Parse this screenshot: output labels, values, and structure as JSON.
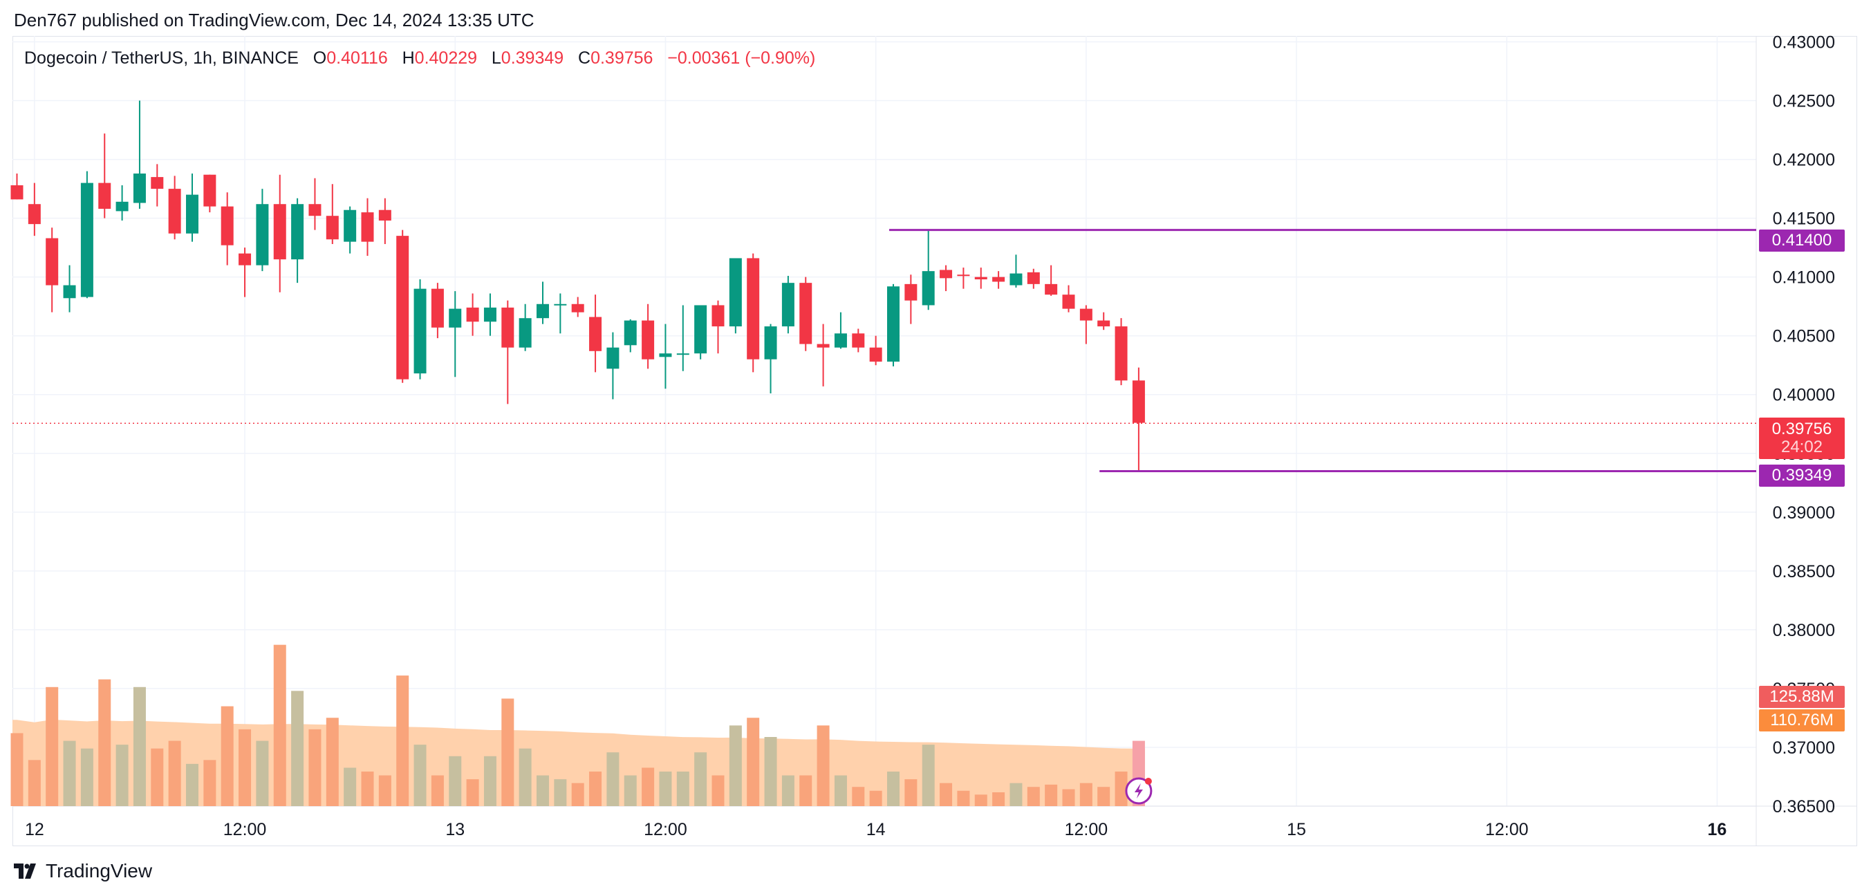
{
  "header": {
    "published": "Den767 published on TradingView.com, Dec 14, 2024 13:35 UTC"
  },
  "legend": {
    "symbol": "Dogecoin / TetherUS, 1h, BINANCE",
    "o_label": "O",
    "open": "0.40116",
    "h_label": "H",
    "high": "0.40229",
    "l_label": "L",
    "low": "0.39349",
    "c_label": "C",
    "close": "0.39756",
    "change": "−0.00361 (−0.90%)"
  },
  "price_tags": {
    "high_line": "0.41400",
    "current": "0.39756",
    "countdown": "24:02",
    "low_line": "0.39349",
    "volume": "125.88M",
    "volume_ma": "110.76M"
  },
  "footer": {
    "brand": "TradingView"
  },
  "colors": {
    "up": "#089981",
    "down": "#f23645",
    "line": "#9c27b0",
    "volume_area": "#ffcfa8"
  },
  "chart_data": {
    "type": "candlestick",
    "title": "Dogecoin / TetherUS, 1h, BINANCE",
    "ylim": [
      0.365,
      0.4305
    ],
    "y_ticks": [
      "0.43000",
      "0.42500",
      "0.42000",
      "0.41500",
      "0.41000",
      "0.40500",
      "0.40000",
      "0.39500",
      "0.39000",
      "0.38500",
      "0.38000",
      "0.37500",
      "0.37000",
      "0.36500"
    ],
    "x_ticks": [
      {
        "label": "12",
        "bar": 1
      },
      {
        "label": "12:00",
        "bar": 13
      },
      {
        "label": "13",
        "bar": 25
      },
      {
        "label": "12:00",
        "bar": 37
      },
      {
        "label": "14",
        "bar": 49
      },
      {
        "label": "12:00",
        "bar": 61
      },
      {
        "label": "15",
        "bar": 73
      },
      {
        "label": "12:00",
        "bar": 85
      },
      {
        "label": "16",
        "bar": 97
      }
    ],
    "horizontal_lines": [
      {
        "value": 0.414,
        "from_bar": 50
      },
      {
        "value": 0.39349,
        "from_bar": 62
      }
    ],
    "current_price": 0.39756,
    "volume_scale_max": 270,
    "candles": [
      {
        "o": 0.4178,
        "h": 0.4188,
        "l": 0.4166,
        "c": 0.4166,
        "v": 95
      },
      {
        "o": 0.4162,
        "h": 0.418,
        "l": 0.4135,
        "c": 0.4145,
        "v": 60
      },
      {
        "o": 0.4133,
        "h": 0.4142,
        "l": 0.407,
        "c": 0.4093,
        "v": 155
      },
      {
        "o": 0.4082,
        "h": 0.411,
        "l": 0.407,
        "c": 0.4093,
        "v": 85
      },
      {
        "o": 0.4083,
        "h": 0.419,
        "l": 0.4082,
        "c": 0.418,
        "v": 75
      },
      {
        "o": 0.418,
        "h": 0.4222,
        "l": 0.415,
        "c": 0.4158,
        "v": 165
      },
      {
        "o": 0.4156,
        "h": 0.4178,
        "l": 0.4148,
        "c": 0.4164,
        "v": 80
      },
      {
        "o": 0.4163,
        "h": 0.425,
        "l": 0.4158,
        "c": 0.4188,
        "v": 155
      },
      {
        "o": 0.4185,
        "h": 0.4196,
        "l": 0.416,
        "c": 0.4175,
        "v": 75
      },
      {
        "o": 0.4175,
        "h": 0.4186,
        "l": 0.4132,
        "c": 0.4137,
        "v": 85
      },
      {
        "o": 0.4137,
        "h": 0.4188,
        "l": 0.413,
        "c": 0.417,
        "v": 55
      },
      {
        "o": 0.4187,
        "h": 0.4187,
        "l": 0.4155,
        "c": 0.416,
        "v": 60
      },
      {
        "o": 0.416,
        "h": 0.4172,
        "l": 0.411,
        "c": 0.4127,
        "v": 130
      },
      {
        "o": 0.412,
        "h": 0.4125,
        "l": 0.4083,
        "c": 0.411,
        "v": 100
      },
      {
        "o": 0.411,
        "h": 0.4175,
        "l": 0.4105,
        "c": 0.4162,
        "v": 85
      },
      {
        "o": 0.4162,
        "h": 0.4187,
        "l": 0.4087,
        "c": 0.4115,
        "v": 210
      },
      {
        "o": 0.4115,
        "h": 0.4167,
        "l": 0.4095,
        "c": 0.4162,
        "v": 150
      },
      {
        "o": 0.4162,
        "h": 0.4184,
        "l": 0.414,
        "c": 0.4152,
        "v": 100
      },
      {
        "o": 0.4152,
        "h": 0.4179,
        "l": 0.4128,
        "c": 0.4132,
        "v": 115
      },
      {
        "o": 0.413,
        "h": 0.416,
        "l": 0.412,
        "c": 0.4157,
        "v": 50
      },
      {
        "o": 0.4155,
        "h": 0.4167,
        "l": 0.4118,
        "c": 0.413,
        "v": 45
      },
      {
        "o": 0.4157,
        "h": 0.4167,
        "l": 0.4128,
        "c": 0.4148,
        "v": 40
      },
      {
        "o": 0.4135,
        "h": 0.414,
        "l": 0.401,
        "c": 0.4013,
        "v": 170
      },
      {
        "o": 0.4018,
        "h": 0.4098,
        "l": 0.4013,
        "c": 0.409,
        "v": 80
      },
      {
        "o": 0.409,
        "h": 0.4095,
        "l": 0.4048,
        "c": 0.4057,
        "v": 40
      },
      {
        "o": 0.4057,
        "h": 0.4088,
        "l": 0.4015,
        "c": 0.4073,
        "v": 65
      },
      {
        "o": 0.4074,
        "h": 0.4086,
        "l": 0.405,
        "c": 0.4062,
        "v": 35
      },
      {
        "o": 0.4062,
        "h": 0.4086,
        "l": 0.405,
        "c": 0.4074,
        "v": 65
      },
      {
        "o": 0.4074,
        "h": 0.408,
        "l": 0.3992,
        "c": 0.404,
        "v": 140
      },
      {
        "o": 0.404,
        "h": 0.4077,
        "l": 0.4037,
        "c": 0.4065,
        "v": 75
      },
      {
        "o": 0.4065,
        "h": 0.4096,
        "l": 0.406,
        "c": 0.4077,
        "v": 40
      },
      {
        "o": 0.4077,
        "h": 0.4086,
        "l": 0.4052,
        "c": 0.4077,
        "v": 35
      },
      {
        "o": 0.4077,
        "h": 0.4083,
        "l": 0.4066,
        "c": 0.407,
        "v": 30
      },
      {
        "o": 0.4066,
        "h": 0.4085,
        "l": 0.4019,
        "c": 0.4037,
        "v": 45
      },
      {
        "o": 0.4022,
        "h": 0.4053,
        "l": 0.3996,
        "c": 0.404,
        "v": 70
      },
      {
        "o": 0.4042,
        "h": 0.4064,
        "l": 0.4036,
        "c": 0.4063,
        "v": 40
      },
      {
        "o": 0.4063,
        "h": 0.4077,
        "l": 0.4022,
        "c": 0.403,
        "v": 50
      },
      {
        "o": 0.4032,
        "h": 0.406,
        "l": 0.4005,
        "c": 0.4035,
        "v": 45
      },
      {
        "o": 0.4035,
        "h": 0.4076,
        "l": 0.402,
        "c": 0.4035,
        "v": 45
      },
      {
        "o": 0.4035,
        "h": 0.4076,
        "l": 0.403,
        "c": 0.4076,
        "v": 70
      },
      {
        "o": 0.4076,
        "h": 0.408,
        "l": 0.4035,
        "c": 0.4058,
        "v": 40
      },
      {
        "o": 0.4058,
        "h": 0.4116,
        "l": 0.4052,
        "c": 0.4116,
        "v": 105
      },
      {
        "o": 0.4116,
        "h": 0.412,
        "l": 0.4019,
        "c": 0.403,
        "v": 115
      },
      {
        "o": 0.403,
        "h": 0.406,
        "l": 0.4001,
        "c": 0.4058,
        "v": 90
      },
      {
        "o": 0.4058,
        "h": 0.4101,
        "l": 0.4052,
        "c": 0.4095,
        "v": 40
      },
      {
        "o": 0.4095,
        "h": 0.41,
        "l": 0.4037,
        "c": 0.4043,
        "v": 40
      },
      {
        "o": 0.4043,
        "h": 0.406,
        "l": 0.4007,
        "c": 0.404,
        "v": 105
      },
      {
        "o": 0.404,
        "h": 0.407,
        "l": 0.4039,
        "c": 0.4052,
        "v": 40
      },
      {
        "o": 0.4052,
        "h": 0.4056,
        "l": 0.4036,
        "c": 0.404,
        "v": 25
      },
      {
        "o": 0.404,
        "h": 0.405,
        "l": 0.4025,
        "c": 0.4028,
        "v": 20
      },
      {
        "o": 0.4028,
        "h": 0.4094,
        "l": 0.4024,
        "c": 0.4092,
        "v": 45
      },
      {
        "o": 0.4094,
        "h": 0.4102,
        "l": 0.406,
        "c": 0.408,
        "v": 35
      },
      {
        "o": 0.4076,
        "h": 0.414,
        "l": 0.4072,
        "c": 0.4105,
        "v": 80
      },
      {
        "o": 0.4106,
        "h": 0.411,
        "l": 0.4088,
        "c": 0.4099,
        "v": 30
      },
      {
        "o": 0.4102,
        "h": 0.4108,
        "l": 0.409,
        "c": 0.4101,
        "v": 20
      },
      {
        "o": 0.41,
        "h": 0.4108,
        "l": 0.409,
        "c": 0.4098,
        "v": 15
      },
      {
        "o": 0.41,
        "h": 0.4105,
        "l": 0.409,
        "c": 0.4096,
        "v": 18
      },
      {
        "o": 0.4093,
        "h": 0.4119,
        "l": 0.4091,
        "c": 0.4103,
        "v": 30
      },
      {
        "o": 0.4104,
        "h": 0.4107,
        "l": 0.409,
        "c": 0.4094,
        "v": 25
      },
      {
        "o": 0.4094,
        "h": 0.411,
        "l": 0.4084,
        "c": 0.4085,
        "v": 28
      },
      {
        "o": 0.4085,
        "h": 0.4093,
        "l": 0.407,
        "c": 0.4073,
        "v": 22
      },
      {
        "o": 0.4073,
        "h": 0.4076,
        "l": 0.4043,
        "c": 0.4063,
        "v": 30
      },
      {
        "o": 0.4063,
        "h": 0.407,
        "l": 0.4055,
        "c": 0.4058,
        "v": 25
      },
      {
        "o": 0.4058,
        "h": 0.4065,
        "l": 0.4008,
        "c": 0.4012,
        "v": 45
      },
      {
        "o": 0.4012,
        "h": 0.4023,
        "l": 0.3935,
        "c": 0.3976,
        "v": 85
      }
    ]
  }
}
